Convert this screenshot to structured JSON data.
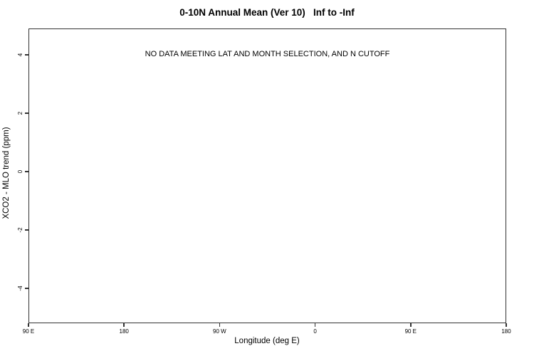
{
  "chart_data": {
    "type": "scatter",
    "title": "0-10N Annual Mean (Ver 10)   Inf to -Inf",
    "xlabel": "Longitude (deg E)",
    "ylabel": "XCO2 - MLO trend (ppm)",
    "x_tick_labels": [
      "90 E",
      "180",
      "90 W",
      "0",
      "90 E",
      "180"
    ],
    "y_tick_values": [
      4,
      2,
      0,
      -2,
      -4
    ],
    "ylim": [
      -5.2,
      4.9
    ],
    "series": [],
    "grid": false,
    "legend": "none",
    "annotation": {
      "text": "NO DATA MEETING LAT AND MONTH SELECTION, AND N CUTOFF",
      "y": 4
    }
  },
  "colors": {
    "axis": "#333333",
    "text": "#000000",
    "background": "#ffffff"
  }
}
